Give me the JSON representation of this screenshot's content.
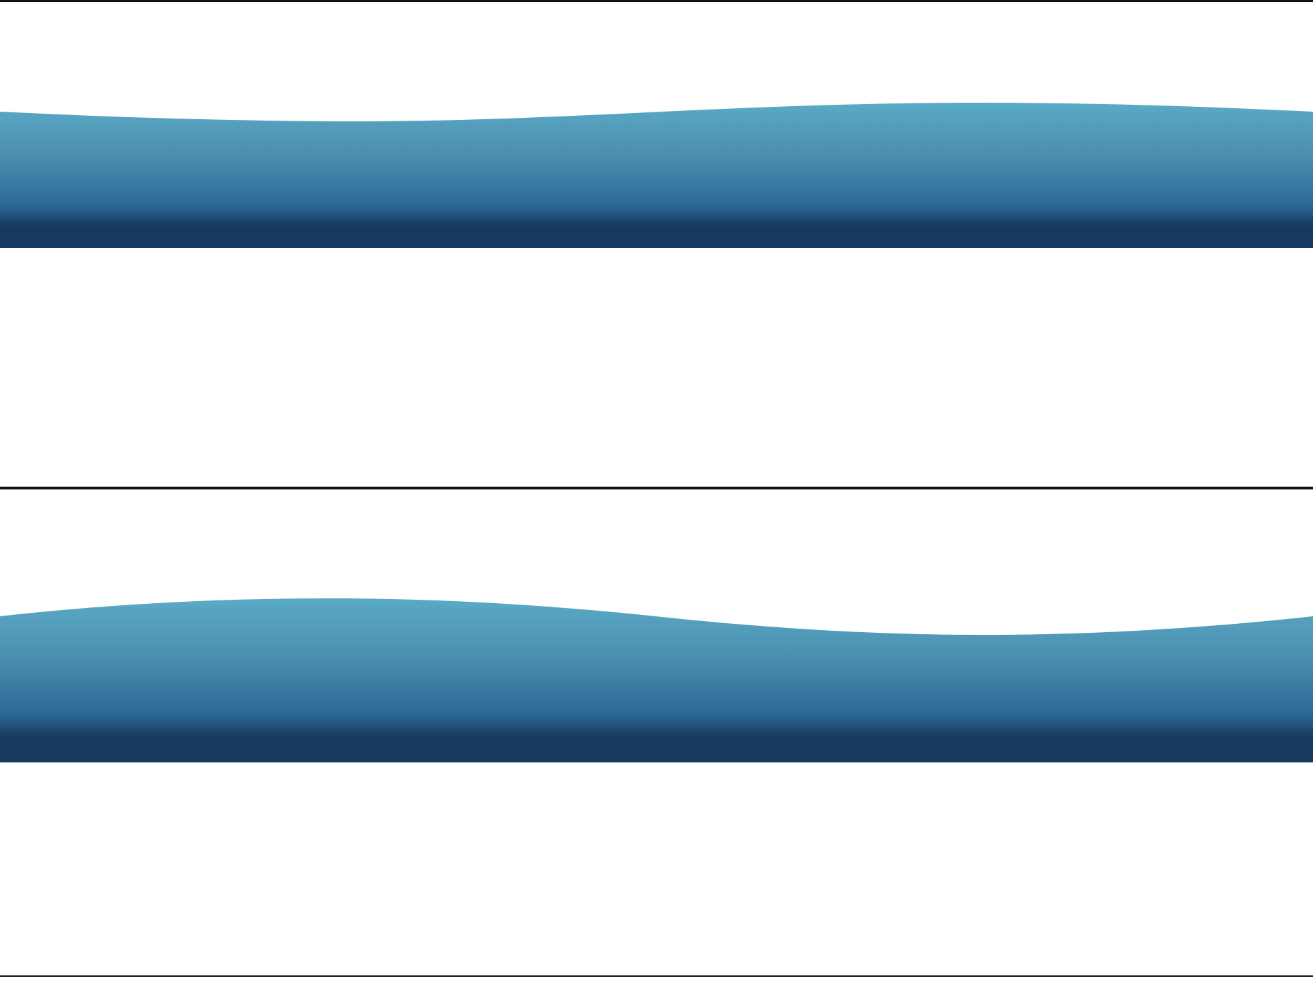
{
  "colors": {
    "background": "#ffffff",
    "rule": "#111111",
    "wave_top": "#5aaac6",
    "wave_mid": "#2d6a96",
    "wave_bottom": "#17395f"
  },
  "panels": [
    {
      "name": "wave-band-upper",
      "shape": "trough-then-crest"
    },
    {
      "name": "wave-band-lower",
      "shape": "crest-then-trough"
    }
  ]
}
